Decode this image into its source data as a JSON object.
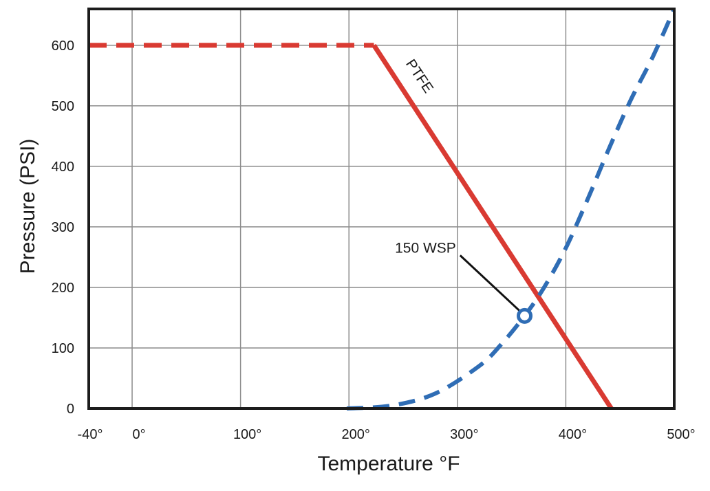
{
  "chart_data": {
    "type": "line",
    "xlabel": "Temperature °F",
    "ylabel": "Pressure (PSI)",
    "xlim": [
      -40,
      500
    ],
    "ylim": [
      0,
      660
    ],
    "x_ticks": [
      -40,
      0,
      100,
      200,
      300,
      400,
      500
    ],
    "x_tick_labels": [
      "-40°",
      "0°",
      "100°",
      "200°",
      "300°",
      "400°",
      "500°"
    ],
    "y_ticks": [
      0,
      100,
      200,
      300,
      400,
      500,
      600
    ],
    "y_tick_labels": [
      "0",
      "100",
      "200",
      "300",
      "400",
      "500",
      "600"
    ],
    "grid": true,
    "series": [
      {
        "name": "PTFE",
        "color": "#d93a32",
        "segments": [
          {
            "style": "dashed",
            "points": [
              [
                -40,
                600
              ],
              [
                223,
                600
              ]
            ]
          },
          {
            "style": "solid",
            "points": [
              [
                223,
                600
              ],
              [
                442,
                0
              ]
            ]
          }
        ]
      },
      {
        "name": "150 WSP",
        "color": "#2f6db5",
        "style": "dashed",
        "points": [
          [
            198,
            0
          ],
          [
            240,
            5
          ],
          [
            280,
            25
          ],
          [
            320,
            70
          ],
          [
            340,
            105
          ],
          [
            362,
            153
          ],
          [
            380,
            200
          ],
          [
            400,
            265
          ],
          [
            420,
            345
          ],
          [
            440,
            430
          ],
          [
            460,
            510
          ],
          [
            480,
            580
          ],
          [
            500,
            660
          ]
        ]
      }
    ],
    "annotations": [
      {
        "text": "PTFE",
        "at": [
          252,
          570
        ],
        "rotation": 56
      },
      {
        "text": "150 WSP",
        "marker": [
          362,
          153
        ],
        "label_at": [
          300,
          262
        ]
      }
    ]
  }
}
